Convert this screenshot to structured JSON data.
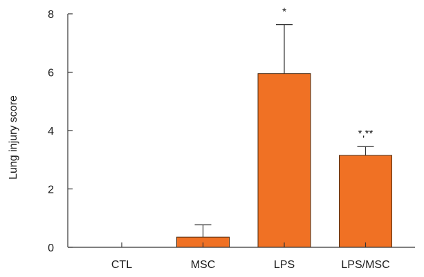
{
  "chart_data": {
    "type": "bar",
    "categories": [
      "CTL",
      "MSC",
      "LPS",
      "LPS/MSC"
    ],
    "series": [
      {
        "values": [
          0,
          0.35,
          5.95,
          3.15
        ],
        "errors": [
          0,
          0.42,
          1.68,
          0.3
        ],
        "color": "#f07124"
      }
    ],
    "annotations": [
      "",
      "",
      "*",
      "*,**"
    ],
    "title": "",
    "xlabel": "",
    "ylabel": "Lung injury score",
    "ylim": [
      0,
      8
    ],
    "yticks": [
      0,
      2,
      4,
      6,
      8
    ],
    "grid": false,
    "legend": "none"
  }
}
